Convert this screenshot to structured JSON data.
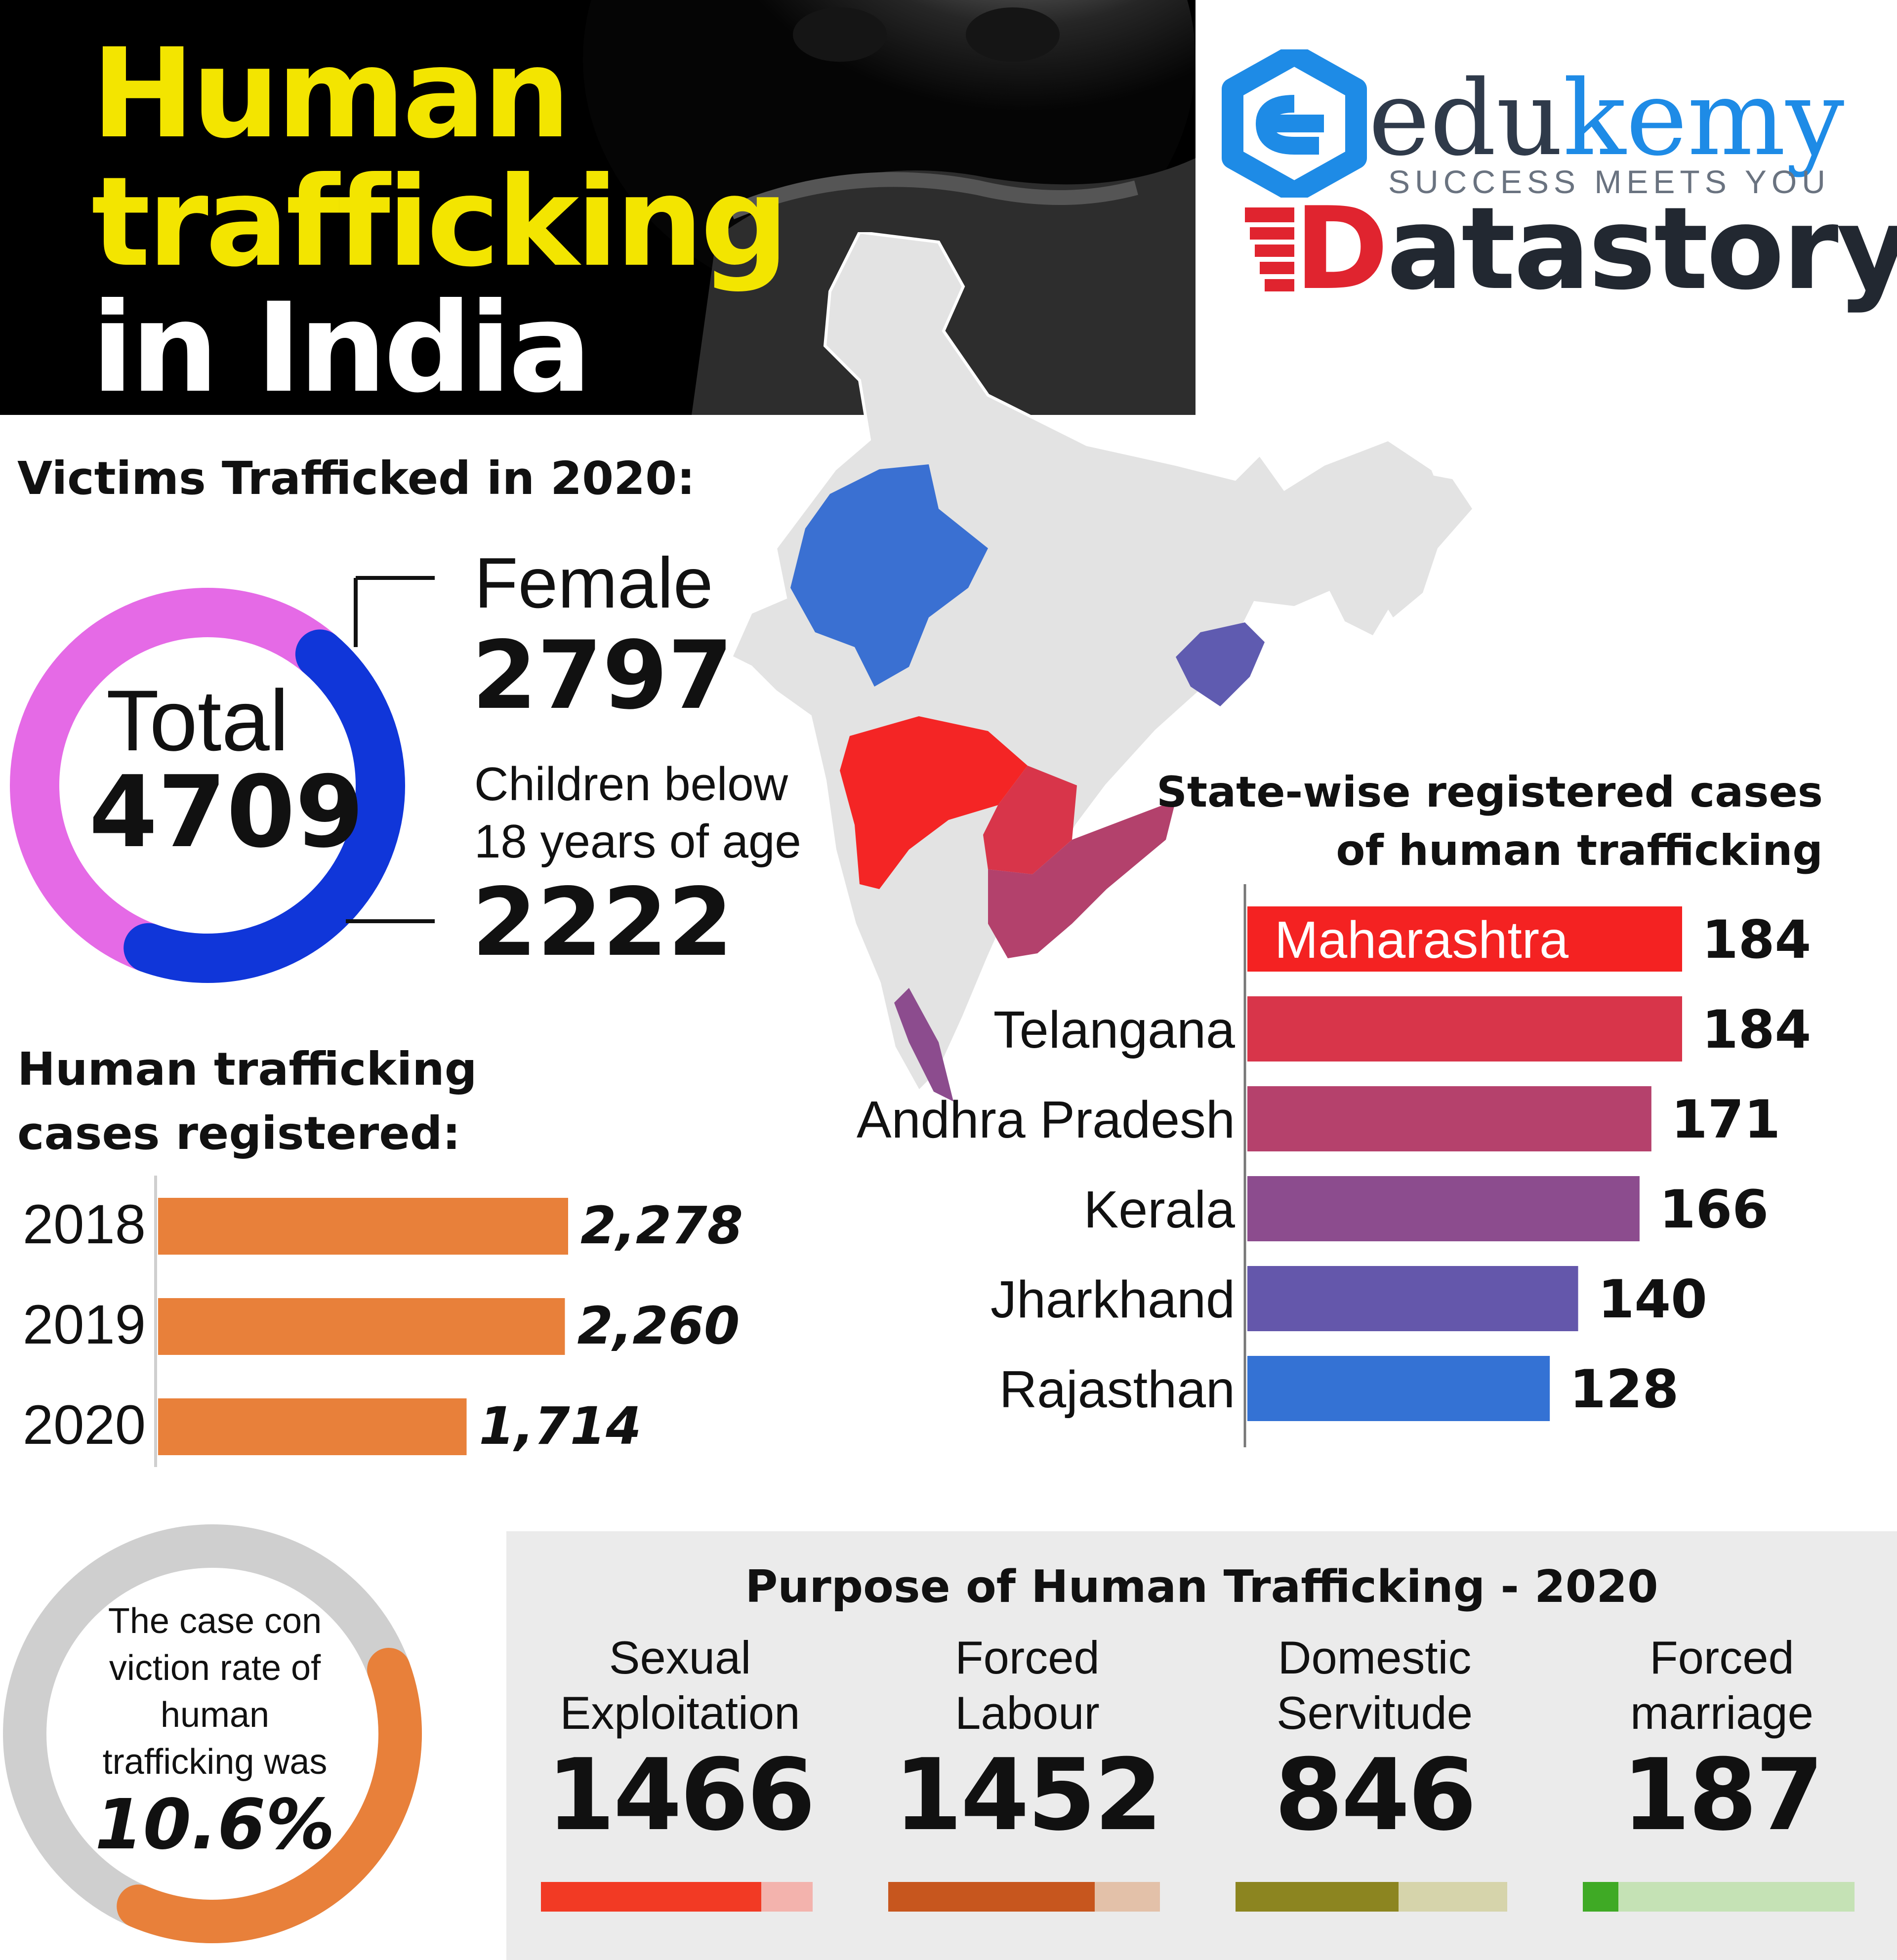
{
  "header": {
    "title_line1": "Human",
    "title_line2": "trafficking",
    "title_line3": "in India"
  },
  "brand": {
    "logo_main_prefix": "edu",
    "logo_main_suffix": "kemy",
    "tagline": "SUCCESS MEETS YOU",
    "product_initial": "D",
    "product_rest": "atastory",
    "colors": {
      "edu": "#2f3a4a",
      "kemy": "#1e8be6",
      "datastory_d": "#e0242f"
    }
  },
  "victims": {
    "heading": "Victims Trafficked in 2020:",
    "total_label": "Total",
    "total_value": "4709",
    "female_label": "Female",
    "female_value": "2797",
    "children_label_line1": "Children below",
    "children_label_line2": "18 years of age",
    "children_value": "2222",
    "colors": {
      "female": "#e56ae6",
      "children": "#1036d9"
    }
  },
  "cases": {
    "heading_line1": "Human trafficking",
    "heading_line2": "cases registered:",
    "bar_color": "#e8803a"
  },
  "states": {
    "heading_line1": "State-wise registered cases",
    "heading_line2": "of human trafficking"
  },
  "conviction": {
    "text_line1": "The case con",
    "text_line2": "viction rate of",
    "text_line3": "human",
    "text_line4": "trafficking was",
    "value": "10.6%",
    "rate": 0.106
  },
  "purpose": {
    "heading": "Purpose of Human Trafficking - 2020",
    "items": [
      {
        "label_line1": "Sexual",
        "label_line2": "Exploitation",
        "value": "1466",
        "fill": 0.81,
        "color": "#f23a24",
        "track": "#f3b3ad"
      },
      {
        "label_line1": "Forced",
        "label_line2": "Labour",
        "value": "1452",
        "fill": 0.76,
        "color": "#c7561e",
        "track": "#e3c1a9"
      },
      {
        "label_line1": "Domestic",
        "label_line2": "Servitude",
        "value": "846",
        "fill": 0.6,
        "color": "#8c8520",
        "track": "#d6d4ab"
      },
      {
        "label_line1": "Forced",
        "label_line2": "marriage",
        "value": "187",
        "fill": 0.13,
        "color": "#3faa25",
        "track": "#c5e2b5"
      }
    ]
  },
  "chart_data": [
    {
      "type": "bar",
      "title": "Human trafficking cases registered:",
      "categories": [
        "2018",
        "2019",
        "2020"
      ],
      "values": [
        2278,
        2260,
        1714
      ],
      "value_labels": [
        "2,278",
        "2,260",
        "1,714"
      ],
      "xlim": [
        0,
        2500
      ]
    },
    {
      "type": "bar",
      "title": "State-wise registered cases of human trafficking",
      "categories": [
        "Maharashtra",
        "Telangana",
        "Andhra Pradesh",
        "Kerala",
        "Jharkhand",
        "Rajasthan"
      ],
      "values": [
        184,
        184,
        171,
        166,
        140,
        128
      ],
      "value_labels": [
        "184",
        "184",
        "171",
        "166",
        "140",
        "128"
      ],
      "colors": [
        "#f42222",
        "#d8354a",
        "#b5416c",
        "#8c4c8e",
        "#6457ab",
        "#3472d4"
      ],
      "xlim": [
        0,
        200
      ]
    },
    {
      "type": "pie",
      "title": "Victims Trafficked in 2020:",
      "categories": [
        "Female",
        "Children below 18 years of age"
      ],
      "values": [
        2797,
        2222
      ],
      "colors": [
        "#e56ae6",
        "#1036d9"
      ]
    }
  ]
}
